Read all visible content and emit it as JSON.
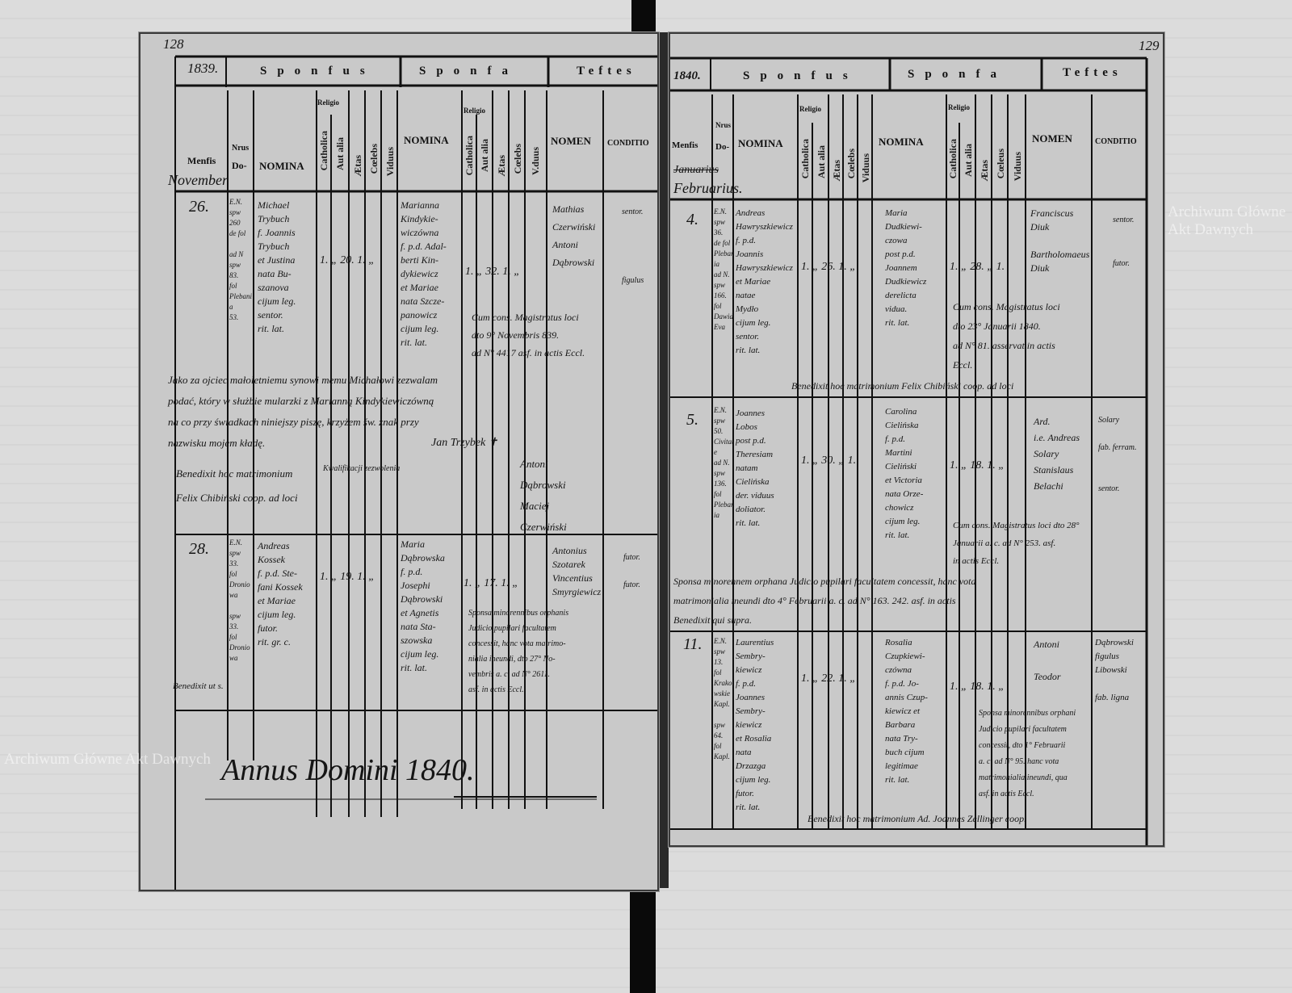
{
  "watermark": "Archiwum Główne Akt Dawnych",
  "left_page": {
    "folio": "128",
    "year": "1839.",
    "header": {
      "sponsus": "Sponfus",
      "sponsa": "Sponfa",
      "testes": "Teftes"
    },
    "columns": {
      "mensis": "Menfis",
      "nrus": "Nrus",
      "domus": "Do-",
      "nomina": "NOMINA",
      "religio": "Religio",
      "catholica": "Catholica",
      "aut_alia": "Aut alia",
      "aetas": "Ætas",
      "coelebs": "Cœlebs",
      "viduus": "Viduus",
      "sponsa_viduus": "V.duus",
      "nomen": "NOMEN",
      "conditio": "CONDITIO"
    },
    "month": "November",
    "entries": [
      {
        "day": "26.",
        "domus": "E.N.\nspw\n260\nde fol\n\nad N\nspw\n83.\nfol\nPlebania\n53.",
        "sponsus": "Michael\nTrybuch\nf. Joannis\nTrybuch\net Justina\nnata Bu-\nszanova\ncijum leg.\nsentor.\nrit. lat.",
        "sponsus_marks": "1.   „ 20. 1. „",
        "sponsa": "Marianna\nKindykie-\nwiczówna\nf. p.d. Adal-\nberti Kin-\ndykiewicz\net Mariae\nnata Szcze-\npanowicz\ncijum leg.\nrit. lat.",
        "sponsa_marks": "1.  „ 32. 1. „",
        "testes": "Mathias\nCzerwiński\nAntoni\nDąbrowski",
        "conditio": "sentor.\n\n\n\n\nfigulus",
        "note": "Cum cons. Magistratus loci\ndto 9° Novembris 839.\nad N° 4417 asf. in actis Eccl.",
        "polish": "Jako za ojciec małoletniemu synowi memu Michałowi zezwalam\npodać, który w służbie mularzki z Marianną Kindykiewiczówną\nna co przy świadkach niniejszy piszę, krzyżem św. znak przy\nnazwisku mojem kładę.",
        "polish_sign": "Jan Trzybek ✝",
        "benedixit": "Benedixit hoc matrimonium\nFelix Chibiński coop. ad loci",
        "consent": "Kwalifikacji zezwolenia",
        "extra_witness": "Antoni\nDąbrowski\nMaciej\nCzerwiński"
      },
      {
        "day": "28.",
        "domus": "E.N.\nspw\n33.\nfol\nDroniowa\n\nspw\n33.\nfol\nDroniowa",
        "sponsus": "Andreas\nKossek\nf. p.d. Ste-\nfani Kossek\net Mariae\ncijum leg.\nfutor.\nrit. gr. c.",
        "sponsus_marks": "1.   „ 19. 1. „",
        "sponsa": "Maria\nDąbrowska\nf. p.d.\nJosephi\nDąbrowski\net Agnetis\nnata Sta-\nszowska\ncijum leg.\nrit. lat.",
        "sponsa_marks": "1.  „ 17. 1. „",
        "testes": "Antonius\nSzotarek\nVincentius\nSmyrgiewicz",
        "conditio": "futor.\n\nfutor.",
        "note": "Sponsa minorennibus orphanis\nJudicio pupilari facultatem\nconcessit, hanc vota matrimo-\nnialia ineundi, dto 27° No-\nvembris a. c. ad N° 2611.\nasf. in actis Eccl.",
        "benedixit": "Benedixit ut s."
      }
    ],
    "annus": "Annus Domini 1840."
  },
  "right_page": {
    "folio": "129",
    "year": "1840.",
    "header": {
      "sponsus": "Sponfus",
      "sponsa": "Sponfa",
      "testes": "Teftes"
    },
    "columns": {
      "mensis": "Menfis",
      "nrus": "Nrus",
      "domus": "Do-",
      "nomina": "NOMINA",
      "religio": "Religio",
      "catholica": "Catholica",
      "aut_alia": "Aut alia",
      "aetas": "Ætas",
      "coelebs": "Cœlebs",
      "viduus": "Viduus",
      "sponsa_coelebs": "Cœleus",
      "nomen": "NOMEN",
      "conditio": "CONDITIO"
    },
    "month": "Februarius.",
    "month_struck": "Januarius",
    "entries": [
      {
        "day": "4.",
        "domus": "E.N.\nspw\n36.\nde fol\nPlebania\nad N.\nspw\n166.\nfol\nDawid\nEva",
        "sponsus": "Andreas\nHawryszkiewicz\nf. p.d.\nJoannis\nHawryszkiewicz\net Mariae\nnatae\nMydło\ncijum leg.\nsentor.\nrit. lat.",
        "sponsus_marks": "1. „ 26. 1. „",
        "sponsa": "Maria\nDudkiewi-\nczowa\npost p.d.\nJoannem\nDudkiewicz\nderelicta\nvidua.\nrit. lat.",
        "sponsa_marks": "1. „ 28. „ 1.",
        "testes": "Franciscus\nDiuk\n\nBartholomaeus\nDiuk",
        "conditio": "sentor.\n\n\nfutor.",
        "note": "Cum cons. Magistratus loci\ndto 23° Januarii 1840.\nad N° 81. asservat in actis\nEccl.",
        "benedixit": "Benedixit hoc matrimonium Felix Chibiński coop. ad loci"
      },
      {
        "day": "5.",
        "domus": "E.N.\nspw\n50.\nCivitate\nad N.\nspw\n136.\nfol\nPlebania",
        "sponsus": "Joannes\nLobos\npost p.d.\nTheresiam\nnatam\nCielińska\nder. viduus\ndoliator.\nrit. lat.",
        "sponsus_marks": "1. „ 30. „ 1.",
        "sponsa": "Carolina\nCielińska\nf. p.d.\nMartini\nCieliński\net Victoria\nnata Orze-\nchowicz\ncijum leg.\nrit. lat.",
        "sponsa_marks": "1. „ 18. 1. „",
        "testes": "Ard.\ni.e. Andreas\nSolary\nStanislaus\nBelachi",
        "conditio": "Solary\n\nfab. ferram.\n\n\nsentor.",
        "note": "Cum cons. Magistratus loci dto 28°\nJanuarii a. c. ad N° 253. asf.\nin actis Eccl.",
        "note2": "Sponsa minorennem orphana Judicio pupilari facultatem concessit, hanc vota\nmatrimonialia ineundi dto 4° Februarii a. c. ad N° 163. 242. asf. in actis\nBenedixit qui supra."
      },
      {
        "day": "11.",
        "domus": "E.N.\nspw\n13.\nfol\nKrakowskie\nKapl.\n\nspw\n64.\nfol\nKapl.",
        "sponsus": "Laurentius\nSembry-\nkiewicz\nf. p.d.\nJoannes\nSembry-\nkiewicz\net Rosalia\nnata\nDrzazga\ncijum leg.\nfutor.\nrit. lat.",
        "sponsus_marks": "1. „ 22. 1. „",
        "sponsa": "Rosalia\nCzupkiewi-\nczówna\nf. p.d. Jo-\nannis Czup-\nkiewicz et\nBarbara\nnata Try-\nbuch cijum\nlegitimae\nrit. lat.",
        "sponsa_marks": "1. „ 18. 1. „",
        "testes": "Antoni\n\nTeodor",
        "conditio": "Dąbrowski\nfigulus\nLibowski\n\nfab. ligna",
        "note": "Sponsa minorennibus orphani\nJudicio pupilari facultatem\nconcessit, dto 1° Februarii\na. c. ad N° 95. hanc vota\nmatrimonialia ineundi, qua\nasf. in actis Eccl.",
        "benedixit": "Benedixit hoc matrimonium Ad. Joannes Zellinger coop."
      }
    ]
  }
}
